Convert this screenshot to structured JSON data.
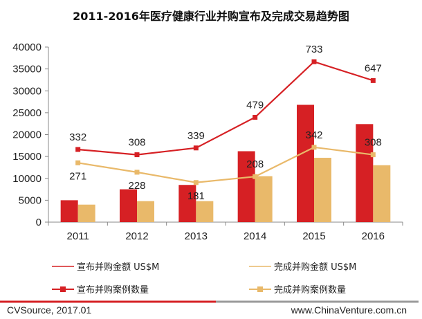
{
  "chart_data": {
    "type": "bar",
    "title": "2011-2016年医疗健康行业并购宣布及完成交易趋势图",
    "categories": [
      "2011",
      "2012",
      "2013",
      "2014",
      "2015",
      "2016"
    ],
    "ylim": [
      0,
      40000
    ],
    "yticks": [
      0,
      5000,
      10000,
      15000,
      20000,
      25000,
      30000,
      35000,
      40000
    ],
    "bar_series": [
      {
        "name": "宣布并购金额 US$M",
        "color": "#d62024",
        "values": [
          5000,
          7500,
          8500,
          16200,
          26800,
          22400
        ]
      },
      {
        "name": "完成并购金额 US$M",
        "color": "#e9b96a",
        "values": [
          4000,
          4800,
          4800,
          10500,
          14700,
          13000
        ]
      }
    ],
    "line_series": [
      {
        "name": "宣布并购案例数量",
        "color": "#d62024",
        "values": [
          332,
          308,
          339,
          479,
          733,
          647
        ],
        "labels": [
          "332",
          "308",
          "339",
          "479",
          "733",
          "647"
        ]
      },
      {
        "name": "完成并购案例数量",
        "color": "#e9b96a",
        "values": [
          271,
          228,
          181,
          208,
          342,
          308
        ],
        "labels": [
          "271",
          "228",
          "181",
          "208",
          "342",
          "308"
        ]
      }
    ]
  },
  "footer": {
    "source": "CVSource, 2017.01",
    "website": "www.ChinaVenture.com.cn"
  }
}
